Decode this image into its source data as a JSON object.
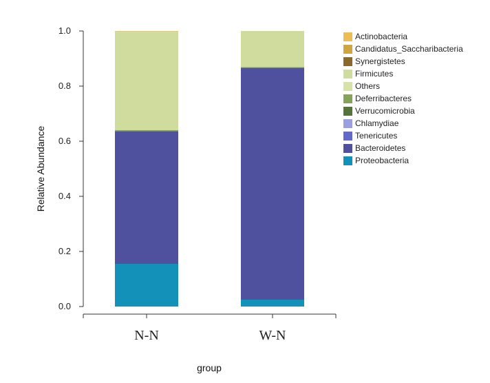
{
  "chart_data": {
    "type": "bar",
    "stacked": true,
    "xlabel": "group",
    "ylabel": "Relative Abundance",
    "ylim": [
      0,
      1.0
    ],
    "yticks": [
      "0.0",
      "0.2",
      "0.4",
      "0.6",
      "0.8",
      "1.0"
    ],
    "categories": [
      "N-N",
      "W-N"
    ],
    "legend_position": "top-right",
    "series": [
      {
        "name": "Proteobacteria",
        "color": "#1391b8",
        "values": [
          0.155,
          0.025
        ]
      },
      {
        "name": "Bacteroidetes",
        "color": "#4f519f",
        "values": [
          0.48,
          0.84
        ]
      },
      {
        "name": "Tenericutes",
        "color": "#6269c9",
        "values": [
          0.0,
          0.0
        ]
      },
      {
        "name": "Chlamydiae",
        "color": "#9aa0e0",
        "values": [
          0.0,
          0.0
        ]
      },
      {
        "name": "Verrucomicrobia",
        "color": "#56733a",
        "values": [
          0.002,
          0.002
        ]
      },
      {
        "name": "Deferribacteres",
        "color": "#85a35b",
        "values": [
          0.003,
          0.002
        ]
      },
      {
        "name": "Others",
        "color": "#d5e2a8",
        "values": [
          0.0,
          0.0
        ]
      },
      {
        "name": "Firmicutes",
        "color": "#d0dc9e",
        "values": [
          0.358,
          0.131
        ]
      },
      {
        "name": "Synergistetes",
        "color": "#8a6a2b",
        "values": [
          0.0,
          0.0
        ]
      },
      {
        "name": "Candidatus_Saccharibacteria",
        "color": "#cfa542",
        "values": [
          0.0,
          0.0
        ]
      },
      {
        "name": "Actinobacteria",
        "color": "#edbd55",
        "values": [
          0.002,
          0.0
        ]
      }
    ]
  },
  "legend": {
    "items": [
      {
        "label": "Actinobacteria",
        "color": "#edbd55"
      },
      {
        "label": "Candidatus_Saccharibacteria",
        "color": "#cfa542"
      },
      {
        "label": "Synergistetes",
        "color": "#8a6a2b"
      },
      {
        "label": "Firmicutes",
        "color": "#d0dc9e"
      },
      {
        "label": "Others",
        "color": "#d5e2a8"
      },
      {
        "label": "Deferribacteres",
        "color": "#85a35b"
      },
      {
        "label": "Verrucomicrobia",
        "color": "#56733a"
      },
      {
        "label": "Chlamydiae",
        "color": "#9aa0e0"
      },
      {
        "label": "Tenericutes",
        "color": "#6269c9"
      },
      {
        "label": "Bacteroidetes",
        "color": "#4f519f"
      },
      {
        "label": "Proteobacteria",
        "color": "#1391b8"
      }
    ]
  }
}
